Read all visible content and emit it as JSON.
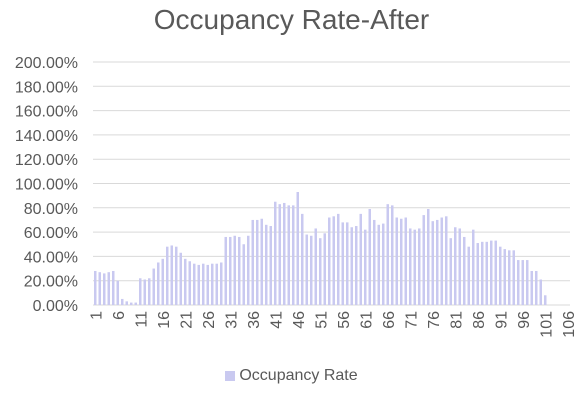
{
  "chart_data": {
    "type": "bar",
    "title": "Occupancy Rate-After",
    "xlabel": "",
    "ylabel": "",
    "ylim": [
      0,
      2.0
    ],
    "y_ticks": [
      "0.00%",
      "20.00%",
      "40.00%",
      "60.00%",
      "80.00%",
      "100.00%",
      "120.00%",
      "140.00%",
      "160.00%",
      "180.00%",
      "200.00%"
    ],
    "x_ticks": [
      "1",
      "6",
      "11",
      "16",
      "21",
      "26",
      "31",
      "36",
      "41",
      "46",
      "51",
      "56",
      "61",
      "66",
      "71",
      "76",
      "81",
      "86",
      "91",
      "96",
      "101",
      "106"
    ],
    "x_min": 1,
    "x_max": 106,
    "grid": true,
    "legend_position": "bottom",
    "colors": {
      "bar": "#c9c9f0",
      "grid": "#d9d9d9",
      "text": "#595959"
    },
    "series": [
      {
        "name": "Occupancy Rate",
        "x": [
          1,
          2,
          3,
          4,
          5,
          6,
          7,
          8,
          9,
          10,
          11,
          12,
          13,
          14,
          15,
          16,
          17,
          18,
          19,
          20,
          21,
          22,
          23,
          24,
          25,
          26,
          27,
          28,
          29,
          30,
          31,
          32,
          33,
          34,
          35,
          36,
          37,
          38,
          39,
          40,
          41,
          42,
          43,
          44,
          45,
          46,
          47,
          48,
          49,
          50,
          51,
          52,
          53,
          54,
          55,
          56,
          57,
          58,
          59,
          60,
          61,
          62,
          63,
          64,
          65,
          66,
          67,
          68,
          69,
          70,
          71,
          72,
          73,
          74,
          75,
          76,
          77,
          78,
          79,
          80,
          81,
          82,
          83,
          84,
          85,
          86,
          87,
          88,
          89,
          90,
          91,
          92,
          93,
          94,
          95,
          96,
          97,
          98,
          99,
          100,
          101,
          102,
          103,
          104,
          105,
          106
        ],
        "values": [
          0.28,
          0.27,
          0.26,
          0.27,
          0.28,
          0.2,
          0.05,
          0.03,
          0.02,
          0.02,
          0.22,
          0.21,
          0.22,
          0.3,
          0.35,
          0.38,
          0.48,
          0.49,
          0.48,
          0.43,
          0.38,
          0.36,
          0.34,
          0.33,
          0.34,
          0.33,
          0.34,
          0.34,
          0.35,
          0.56,
          0.56,
          0.57,
          0.56,
          0.5,
          0.57,
          0.7,
          0.7,
          0.71,
          0.66,
          0.65,
          0.85,
          0.83,
          0.84,
          0.82,
          0.82,
          0.93,
          0.75,
          0.58,
          0.57,
          0.63,
          0.55,
          0.59,
          0.72,
          0.73,
          0.75,
          0.68,
          0.68,
          0.64,
          0.65,
          0.75,
          0.62,
          0.79,
          0.7,
          0.66,
          0.67,
          0.83,
          0.82,
          0.72,
          0.71,
          0.72,
          0.63,
          0.62,
          0.63,
          0.74,
          0.79,
          0.69,
          0.7,
          0.72,
          0.73,
          0.55,
          0.64,
          0.63,
          0.56,
          0.48,
          0.62,
          0.51,
          0.52,
          0.52,
          0.53,
          0.53,
          0.48,
          0.46,
          0.45,
          0.45,
          0.37,
          0.37,
          0.37,
          0.28,
          0.28,
          0.21,
          0.08,
          0,
          0,
          0,
          0,
          0
        ]
      }
    ]
  }
}
